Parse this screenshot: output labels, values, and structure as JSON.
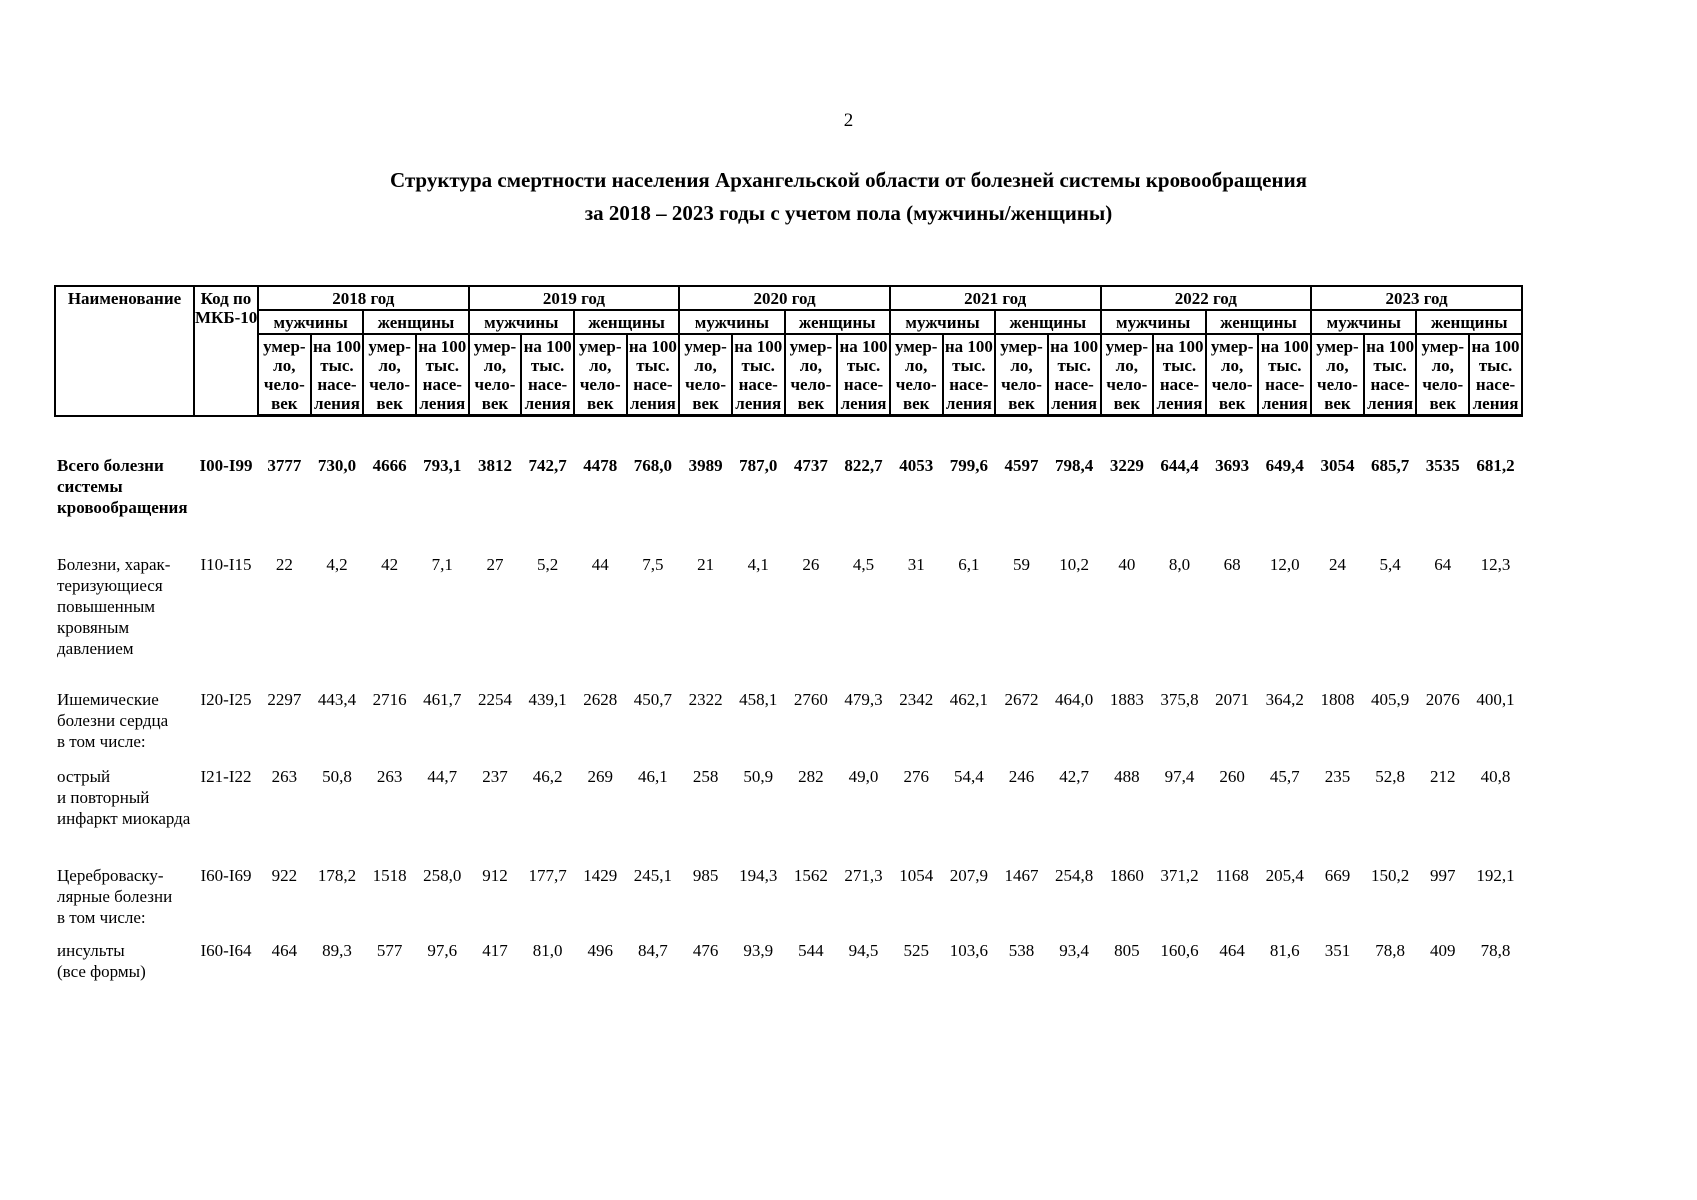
{
  "page": {
    "number": "2"
  },
  "title": {
    "line1": "Структура смертности населения Архангельской области от болезней системы кровообращения",
    "line2": "за 2018 – 2023 годы с учетом пола (мужчины/женщины)"
  },
  "table": {
    "header": {
      "name_label": "Наименование",
      "code_label": "Код по\nМКБ-10",
      "years": [
        "2018 год",
        "2019 год",
        "2020 год",
        "2021 год",
        "2022 год",
        "2023 год"
      ],
      "sex_labels": [
        "мужчины",
        "женщины"
      ],
      "metric_labels": [
        "умер-\nло,\nчело-\nвек",
        "на 100\nтыс.\nнасе-\nления"
      ]
    },
    "rows": [
      {
        "name": "Всего болезни\nсистемы\nкровообращения",
        "code": "I00-I99",
        "bold": true,
        "values": [
          "3777",
          "730,0",
          "4666",
          "793,1",
          "3812",
          "742,7",
          "4478",
          "768,0",
          "3989",
          "787,0",
          "4737",
          "822,7",
          "4053",
          "799,6",
          "4597",
          "798,4",
          "3229",
          "644,4",
          "3693",
          "649,4",
          "3054",
          "685,7",
          "3535",
          "681,2"
        ]
      },
      {
        "name": "Болезни, харак-\nтеризующиеся\nповышенным\nкровяным\nдавлением",
        "code": "I10-I15",
        "bold": false,
        "values": [
          "22",
          "4,2",
          "42",
          "7,1",
          "27",
          "5,2",
          "44",
          "7,5",
          "21",
          "4,1",
          "26",
          "4,5",
          "31",
          "6,1",
          "59",
          "10,2",
          "40",
          "8,0",
          "68",
          "12,0",
          "24",
          "5,4",
          "64",
          "12,3"
        ]
      },
      {
        "name": "Ишемические\nболезни сердца\nв том числе:",
        "code": "I20-I25",
        "bold": false,
        "values": [
          "2297",
          "443,4",
          "2716",
          "461,7",
          "2254",
          "439,1",
          "2628",
          "450,7",
          "2322",
          "458,1",
          "2760",
          "479,3",
          "2342",
          "462,1",
          "2672",
          "464,0",
          "1883",
          "375,8",
          "2071",
          "364,2",
          "1808",
          "405,9",
          "2076",
          "400,1"
        ]
      },
      {
        "name": "острый\nи повторный\nинфаркт миокарда",
        "code": "I21-I22",
        "bold": false,
        "values": [
          "263",
          "50,8",
          "263",
          "44,7",
          "237",
          "46,2",
          "269",
          "46,1",
          "258",
          "50,9",
          "282",
          "49,0",
          "276",
          "54,4",
          "246",
          "42,7",
          "488",
          "97,4",
          "260",
          "45,7",
          "235",
          "52,8",
          "212",
          "40,8"
        ]
      },
      {
        "name": "Цереброваску-\nлярные болезни\nв том числе:",
        "code": "I60-I69",
        "bold": false,
        "values": [
          "922",
          "178,2",
          "1518",
          "258,0",
          "912",
          "177,7",
          "1429",
          "245,1",
          "985",
          "194,3",
          "1562",
          "271,3",
          "1054",
          "207,9",
          "1467",
          "254,8",
          "1860",
          "371,2",
          "1168",
          "205,4",
          "669",
          "150,2",
          "997",
          "192,1"
        ]
      },
      {
        "name": "инсульты\n(все формы)",
        "code": "I60-I64",
        "bold": false,
        "values": [
          "464",
          "89,3",
          "577",
          "97,6",
          "417",
          "81,0",
          "496",
          "84,7",
          "476",
          "93,9",
          "544",
          "94,5",
          "525",
          "103,6",
          "538",
          "93,4",
          "805",
          "160,6",
          "464",
          "81,6",
          "351",
          "78,8",
          "409",
          "78,8"
        ]
      }
    ]
  }
}
